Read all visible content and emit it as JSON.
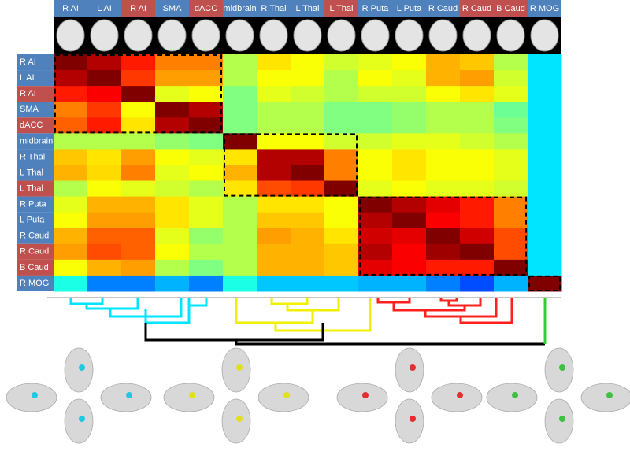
{
  "chart_data": {
    "type": "heatmap",
    "colormap": "jet",
    "vlim": [
      0,
      1
    ],
    "x_labels": [
      {
        "text": "R AI",
        "color": "#4f81bd"
      },
      {
        "text": "L AI",
        "color": "#4f81bd"
      },
      {
        "text": "R AI",
        "color": "#c0504d"
      },
      {
        "text": "SMA",
        "color": "#4f81bd"
      },
      {
        "text": "dACC",
        "color": "#c0504d"
      },
      {
        "text": "midbrain",
        "color": "#4f81bd"
      },
      {
        "text": "R Thal",
        "color": "#4f81bd"
      },
      {
        "text": "L Thal",
        "color": "#4f81bd"
      },
      {
        "text": "L Thal",
        "color": "#c0504d"
      },
      {
        "text": "R Puta",
        "color": "#4f81bd"
      },
      {
        "text": "L Puta",
        "color": "#4f81bd"
      },
      {
        "text": "R Caud",
        "color": "#4f81bd"
      },
      {
        "text": "R Caud",
        "color": "#c0504d"
      },
      {
        "text": "B Caud",
        "color": "#c0504d"
      },
      {
        "text": "R MOG",
        "color": "#4f81bd"
      }
    ],
    "y_labels": [
      {
        "text": "R AI",
        "color": "#4f81bd"
      },
      {
        "text": "L AI",
        "color": "#4f81bd"
      },
      {
        "text": "R AI",
        "color": "#c0504d"
      },
      {
        "text": "SMA",
        "color": "#4f81bd"
      },
      {
        "text": "dACC",
        "color": "#c0504d"
      },
      {
        "text": "midbrain",
        "color": "#4f81bd"
      },
      {
        "text": "R Thal",
        "color": "#4f81bd"
      },
      {
        "text": "L Thal",
        "color": "#4f81bd"
      },
      {
        "text": "L Thal",
        "color": "#c0504d"
      },
      {
        "text": "R Puta",
        "color": "#4f81bd"
      },
      {
        "text": "L Puta",
        "color": "#4f81bd"
      },
      {
        "text": "R Caud",
        "color": "#4f81bd"
      },
      {
        "text": "R Caud",
        "color": "#c0504d"
      },
      {
        "text": "B Caud",
        "color": "#c0504d"
      },
      {
        "text": "R MOG",
        "color": "#4f81bd"
      }
    ],
    "matrix": [
      [
        1,
        0.95,
        0.85,
        0.75,
        0.75,
        0.55,
        0.65,
        0.62,
        0.58,
        0.6,
        0.62,
        0.7,
        0.68,
        0.55,
        0.35
      ],
      [
        0.95,
        1,
        0.82,
        0.72,
        0.72,
        0.55,
        0.62,
        0.62,
        0.55,
        0.62,
        0.6,
        0.7,
        0.72,
        0.58,
        0.35
      ],
      [
        0.85,
        0.88,
        1,
        0.6,
        0.62,
        0.5,
        0.6,
        0.58,
        0.55,
        0.58,
        0.58,
        0.62,
        0.65,
        0.6,
        0.35
      ],
      [
        0.75,
        0.82,
        0.62,
        1,
        0.95,
        0.5,
        0.55,
        0.55,
        0.5,
        0.5,
        0.52,
        0.55,
        0.55,
        0.48,
        0.35
      ],
      [
        0.78,
        0.85,
        0.65,
        0.95,
        1,
        0.5,
        0.55,
        0.55,
        0.5,
        0.5,
        0.52,
        0.55,
        0.55,
        0.5,
        0.35
      ],
      [
        0.55,
        0.55,
        0.55,
        0.52,
        0.5,
        1,
        0.62,
        0.62,
        0.58,
        0.58,
        0.6,
        0.6,
        0.58,
        0.55,
        0.35
      ],
      [
        0.68,
        0.65,
        0.72,
        0.62,
        0.6,
        0.65,
        0.95,
        0.95,
        0.75,
        0.62,
        0.65,
        0.62,
        0.62,
        0.6,
        0.35
      ],
      [
        0.7,
        0.66,
        0.75,
        0.6,
        0.62,
        0.7,
        0.95,
        1,
        0.75,
        0.62,
        0.65,
        0.62,
        0.62,
        0.6,
        0.35
      ],
      [
        0.55,
        0.62,
        0.6,
        0.58,
        0.55,
        0.65,
        0.8,
        0.82,
        1,
        0.6,
        0.62,
        0.6,
        0.6,
        0.58,
        0.35
      ],
      [
        0.6,
        0.7,
        0.7,
        0.65,
        0.6,
        0.55,
        0.65,
        0.65,
        0.62,
        1,
        0.95,
        0.9,
        0.85,
        0.75,
        0.35
      ],
      [
        0.62,
        0.72,
        0.72,
        0.65,
        0.6,
        0.55,
        0.68,
        0.68,
        0.62,
        0.95,
        1,
        0.88,
        0.85,
        0.75,
        0.35
      ],
      [
        0.7,
        0.78,
        0.78,
        0.6,
        0.52,
        0.55,
        0.72,
        0.7,
        0.65,
        0.92,
        0.9,
        1,
        0.92,
        0.8,
        0.35
      ],
      [
        0.72,
        0.8,
        0.78,
        0.62,
        0.55,
        0.55,
        0.7,
        0.7,
        0.68,
        0.95,
        0.88,
        0.97,
        1,
        0.8,
        0.35
      ],
      [
        0.62,
        0.7,
        0.72,
        0.55,
        0.5,
        0.55,
        0.7,
        0.7,
        0.68,
        0.9,
        0.88,
        0.85,
        0.85,
        1,
        0.35
      ],
      [
        0.4,
        0.25,
        0.25,
        0.3,
        0.25,
        0.4,
        0.32,
        0.32,
        0.32,
        0.3,
        0.3,
        0.25,
        0.2,
        0.3,
        1
      ]
    ]
  }
}
